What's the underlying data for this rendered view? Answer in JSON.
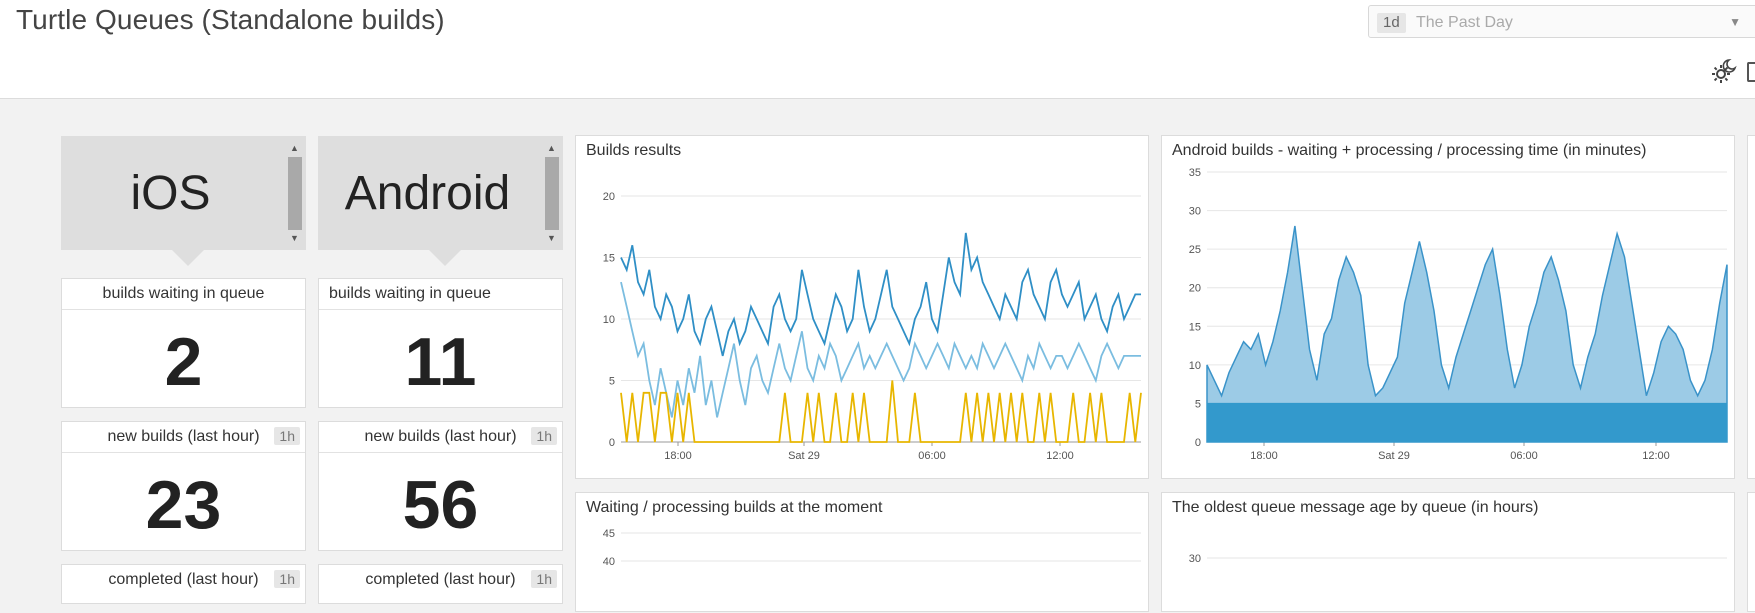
{
  "header": {
    "title": "Turtle Queues (Standalone builds)",
    "time_picker": {
      "badge": "1d",
      "value": "The Past Day"
    }
  },
  "icons": {
    "settings": "gear-moon-icon",
    "edge": "display-icon",
    "time_chevron": "chevron-down-icon"
  },
  "notes": [
    {
      "label": "iOS"
    },
    {
      "label": "Android"
    }
  ],
  "ios": {
    "waiting": {
      "title": "builds waiting in queue",
      "value": "2"
    },
    "new_builds": {
      "title": "new builds (last hour)",
      "badge": "1h",
      "value": "23"
    },
    "completed": {
      "title": "completed (last hour)",
      "badge": "1h"
    }
  },
  "android": {
    "waiting": {
      "title": "builds waiting in queue",
      "value": "11"
    },
    "new_builds": {
      "title": "new builds (last hour)",
      "badge": "1h",
      "value": "56"
    },
    "completed": {
      "title": "completed (last hour)",
      "badge": "1h"
    }
  },
  "panels": {
    "builds_results": {
      "title": "Builds results"
    },
    "android_waiting": {
      "title": "Android builds - waiting + processing / processing time (in minutes)"
    },
    "waiting_processing": {
      "title": "Waiting / processing builds at the moment"
    },
    "oldest_queue": {
      "title": "The oldest queue message age by queue (in hours)"
    }
  },
  "colors": {
    "dark_blue": "#2f8fc6",
    "light_blue": "#7bbde0",
    "yellow": "#e8b600",
    "area_light": "#9ccbe6",
    "area_dark": "#3399cc"
  },
  "chart_data": [
    {
      "type": "line",
      "title": "Builds results",
      "x_ticks": [
        "18:00",
        "Sat 29",
        "06:00",
        "12:00"
      ],
      "y_ticks": [
        0,
        5,
        10,
        15,
        20
      ],
      "ylim": [
        0,
        20
      ],
      "series": [
        {
          "color": "#2f8fc6",
          "values": [
            15,
            14,
            16,
            13,
            12,
            14,
            11,
            10,
            12,
            11,
            9,
            10,
            12,
            9,
            8,
            10,
            11,
            9,
            7,
            9,
            10,
            8,
            9,
            11,
            10,
            9,
            8,
            11,
            12,
            10,
            9,
            10,
            14,
            12,
            10,
            9,
            8,
            10,
            12,
            11,
            9,
            10,
            14,
            11,
            9,
            10,
            12,
            14,
            11,
            10,
            9,
            8,
            10,
            11,
            13,
            10,
            9,
            12,
            15,
            13,
            12,
            17,
            14,
            15,
            13,
            12,
            11,
            10,
            12,
            11,
            10,
            13,
            14,
            12,
            11,
            10,
            13,
            14,
            12,
            11,
            12,
            13,
            10,
            11,
            12,
            10,
            9,
            11,
            12,
            10,
            11,
            12,
            12
          ]
        },
        {
          "color": "#7bbde0",
          "values": [
            13,
            11,
            9,
            7,
            8,
            5,
            3,
            6,
            4,
            2,
            5,
            3,
            6,
            4,
            7,
            3,
            5,
            2,
            4,
            6,
            8,
            5,
            3,
            6,
            7,
            5,
            4,
            6,
            8,
            6,
            5,
            7,
            9,
            6,
            5,
            7,
            6,
            8,
            7,
            5,
            6,
            7,
            8,
            6,
            7,
            6,
            7,
            8,
            7,
            6,
            5,
            6,
            8,
            7,
            6,
            7,
            8,
            7,
            6,
            8,
            7,
            6,
            7,
            6,
            8,
            7,
            6,
            7,
            8,
            7,
            6,
            5,
            7,
            6,
            8,
            7,
            6,
            7,
            7,
            6,
            7,
            8,
            7,
            6,
            5,
            7,
            8,
            7,
            6,
            7,
            7,
            7,
            7
          ]
        },
        {
          "color": "#e8b600",
          "values": [
            4,
            0,
            4,
            0,
            4,
            4,
            0,
            4,
            4,
            0,
            4,
            0,
            4,
            0,
            0,
            0,
            0,
            0,
            0,
            0,
            0,
            0,
            0,
            0,
            0,
            0,
            0,
            0,
            0,
            4,
            0,
            0,
            0,
            4,
            0,
            4,
            0,
            0,
            4,
            0,
            0,
            4,
            0,
            4,
            0,
            0,
            0,
            0,
            5,
            0,
            0,
            0,
            4,
            0,
            0,
            0,
            0,
            0,
            0,
            0,
            0,
            4,
            0,
            4,
            0,
            4,
            0,
            4,
            0,
            4,
            0,
            4,
            0,
            0,
            4,
            0,
            4,
            0,
            0,
            0,
            4,
            0,
            0,
            4,
            0,
            4,
            0,
            0,
            0,
            0,
            4,
            0,
            4
          ]
        }
      ]
    },
    {
      "type": "area",
      "title": "Android builds - waiting + processing / processing time (in minutes)",
      "x_ticks": [
        "18:00",
        "Sat 29",
        "06:00",
        "12:00"
      ],
      "y_ticks": [
        0,
        5,
        10,
        15,
        20,
        25,
        30,
        35
      ],
      "ylim": [
        0,
        35
      ],
      "series": [
        {
          "color": "#9ccbe6",
          "values": [
            10,
            8,
            6,
            9,
            11,
            13,
            12,
            14,
            10,
            13,
            17,
            22,
            28,
            20,
            12,
            8,
            14,
            16,
            21,
            24,
            22,
            19,
            10,
            6,
            7,
            9,
            11,
            18,
            22,
            26,
            22,
            17,
            10,
            7,
            11,
            14,
            17,
            20,
            23,
            25,
            19,
            12,
            7,
            10,
            15,
            18,
            22,
            24,
            21,
            17,
            10,
            7,
            11,
            14,
            19,
            23,
            27,
            24,
            18,
            12,
            6,
            9,
            13,
            15,
            14,
            12,
            8,
            6,
            8,
            12,
            18,
            23
          ]
        },
        {
          "color": "#3399cc",
          "values": [
            5,
            5,
            5,
            5,
            5,
            5,
            5,
            5,
            5,
            5,
            5,
            5,
            5,
            5,
            5,
            5,
            5,
            5,
            5,
            5,
            5,
            5,
            5,
            5,
            5,
            5,
            5,
            5,
            5,
            5,
            5,
            5,
            5,
            5,
            5,
            5,
            5,
            5,
            5,
            5,
            5,
            5,
            5,
            5,
            5,
            5,
            5,
            5,
            5,
            5,
            5,
            5,
            5,
            5,
            5,
            5,
            5,
            5,
            5,
            5,
            5,
            5,
            5,
            5,
            5,
            5,
            5,
            5,
            5,
            5,
            5,
            5
          ]
        }
      ]
    },
    {
      "type": "line",
      "title": "Waiting / processing builds at the moment",
      "y_ticks": [
        40,
        45
      ]
    },
    {
      "type": "line",
      "title": "The oldest queue message age by queue (in hours)",
      "y_ticks": [
        30
      ]
    }
  ]
}
